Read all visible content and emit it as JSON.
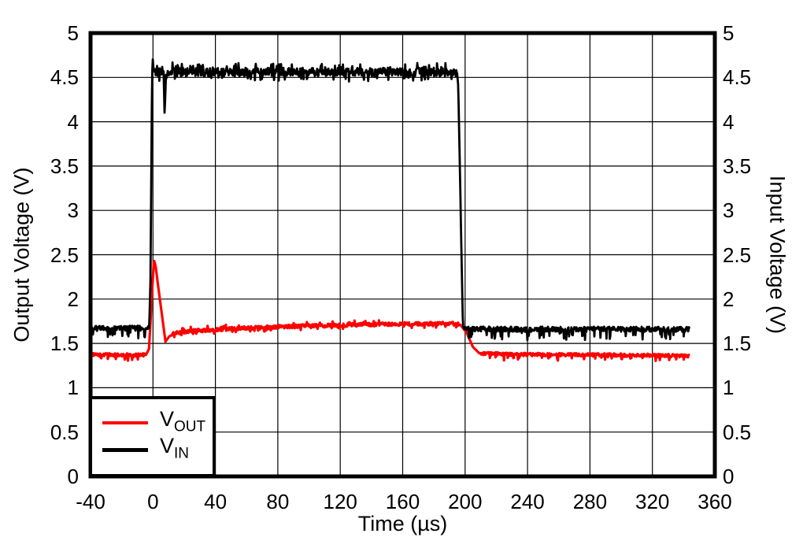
{
  "chart_data": {
    "type": "line",
    "title": "",
    "xlabel": "Time (µs)",
    "ylabel_left": "Output Voltage (V)",
    "ylabel_right": "Input Voltage (V)",
    "xlim": [
      -40,
      360
    ],
    "ylim": [
      0,
      5
    ],
    "xticks": [
      -40,
      0,
      40,
      80,
      120,
      160,
      200,
      240,
      280,
      320,
      360
    ],
    "yticks_left": [
      0,
      0.5,
      1,
      1.5,
      2,
      2.5,
      3,
      3.5,
      4,
      4.5,
      5
    ],
    "yticks_right": [
      0,
      0.5,
      1,
      1.5,
      2,
      2.5,
      3,
      3.5,
      4,
      4.5,
      5
    ],
    "grid": true,
    "background": "#ffffff",
    "border_color": "#000000",
    "legend_position": "bottom-left",
    "series": [
      {
        "name": "VOUT",
        "label_main": "V",
        "label_sub": "OUT",
        "color": "#ff0000",
        "axis": "left",
        "linewidth": 3.2,
        "keypoints": [
          [
            -40,
            1.37
          ],
          [
            -4.5,
            1.37
          ],
          [
            -2.5,
            1.44
          ],
          [
            -0.5,
            2.1
          ],
          [
            0.6,
            2.44
          ],
          [
            1.6,
            2.38
          ],
          [
            8,
            1.52
          ],
          [
            10.5,
            1.58
          ],
          [
            14,
            1.615
          ],
          [
            25,
            1.64
          ],
          [
            60,
            1.675
          ],
          [
            100,
            1.7
          ],
          [
            150,
            1.715
          ],
          [
            192,
            1.725
          ],
          [
            197,
            1.71
          ],
          [
            201,
            1.62
          ],
          [
            205,
            1.46
          ],
          [
            209,
            1.39
          ],
          [
            230,
            1.375
          ],
          [
            290,
            1.37
          ],
          [
            344,
            1.36
          ]
        ],
        "noise_regions": [
          {
            "t0": -40,
            "t1": -5,
            "amp": 0.018,
            "tick_prob": 0.08,
            "tick_amp": 0.055,
            "tick_dir": -1
          },
          {
            "t0": 12,
            "t1": 196,
            "amp": 0.02,
            "tick_prob": 0.12,
            "tick_amp": 0.035,
            "tick_dir": 0
          },
          {
            "t0": 210,
            "t1": 344,
            "amp": 0.018,
            "tick_prob": 0.08,
            "tick_amp": 0.055,
            "tick_dir": -1
          }
        ]
      },
      {
        "name": "VIN",
        "label_main": "V",
        "label_sub": "IN",
        "color": "#000000",
        "axis": "right",
        "linewidth": 2.8,
        "keypoints": [
          [
            -40,
            1.67
          ],
          [
            -2.4,
            1.67
          ],
          [
            -1.6,
            2.2
          ],
          [
            -0.6,
            4.45
          ],
          [
            -0.2,
            4.73
          ],
          [
            0.3,
            4.6
          ],
          [
            0.9,
            4.56
          ],
          [
            6.9,
            4.56
          ],
          [
            7.5,
            4.01
          ],
          [
            8.2,
            4.56
          ],
          [
            194.8,
            4.56
          ],
          [
            195.6,
            4.4
          ],
          [
            198.6,
            1.7
          ],
          [
            199.5,
            1.66
          ],
          [
            344,
            1.66
          ]
        ],
        "noise_regions": [
          {
            "t0": -40,
            "t1": -2.6,
            "amp": 0.03,
            "tick_prob": 0.1,
            "tick_amp": 0.1,
            "tick_dir": -1
          },
          {
            "t0": 0.9,
            "t1": 194.6,
            "amp": 0.05,
            "tick_prob": 0.22,
            "tick_amp": 0.06,
            "tick_dir": 0
          },
          {
            "t0": 199.8,
            "t1": 344,
            "amp": 0.03,
            "tick_prob": 0.1,
            "tick_amp": 0.1,
            "tick_dir": -1
          }
        ]
      }
    ]
  }
}
